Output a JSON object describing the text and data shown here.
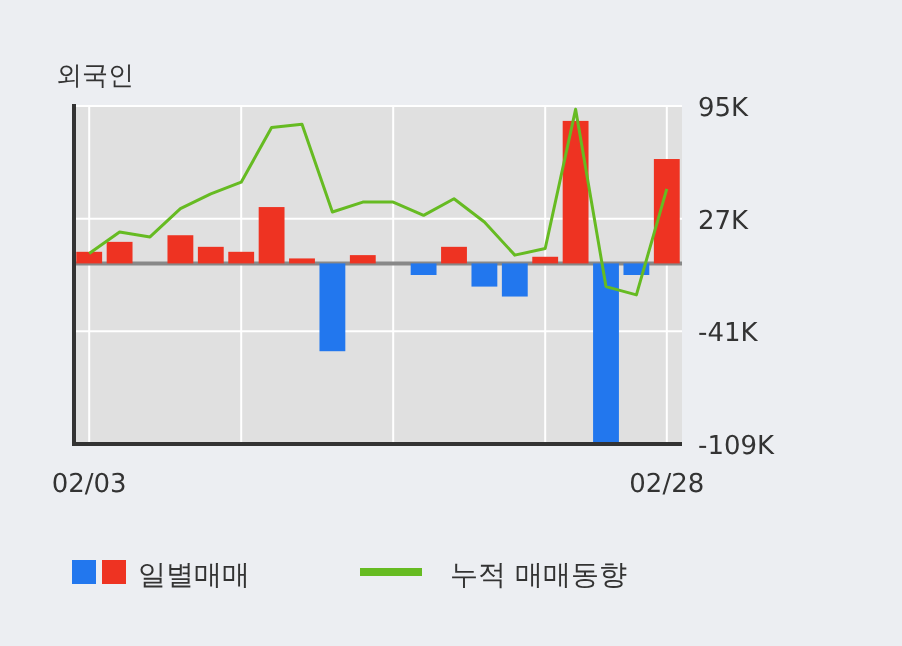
{
  "chart_data": {
    "type": "bar",
    "title": "외국인",
    "categories": [
      "02/03",
      null,
      null,
      null,
      null,
      null,
      null,
      null,
      null,
      null,
      null,
      null,
      null,
      null,
      null,
      null,
      null,
      null,
      null,
      "02/28"
    ],
    "series": [
      {
        "name": "일별매매",
        "colors": [
          "#ee3322",
          "#ee3322",
          null,
          "#ee3322",
          "#ee3322",
          "#ee3322",
          "#ee3322",
          "#ee3322",
          "#2277ee",
          "#ee3322",
          null,
          "#2277ee",
          "#ee3322",
          "#2277ee",
          "#2277ee",
          "#ee3322",
          "#ee3322",
          "#2277ee",
          "#2277ee",
          "#ee3322"
        ],
        "values": [
          7,
          13,
          null,
          17,
          10,
          7,
          34,
          3,
          -53,
          5,
          null,
          -7,
          10,
          -14,
          -20,
          4,
          86,
          -108,
          -7,
          63
        ]
      },
      {
        "name": "누적 매매동향",
        "type": "line",
        "color": "#66bb22",
        "values": [
          6,
          19,
          16,
          33,
          42,
          49,
          82,
          84,
          31,
          37,
          37,
          29,
          39,
          25,
          5,
          9,
          93,
          -14,
          -19,
          45
        ]
      }
    ],
    "ylim": [
      -109,
      95
    ],
    "yticks": [
      {
        "value": 95,
        "label": "95K"
      },
      {
        "value": 27,
        "label": "27K"
      },
      {
        "value": -41,
        "label": "-41K"
      },
      {
        "value": -109,
        "label": "-109K"
      }
    ],
    "grid": true,
    "legend": "bottom"
  }
}
